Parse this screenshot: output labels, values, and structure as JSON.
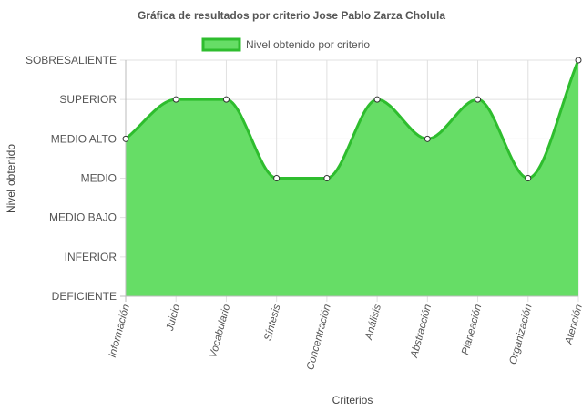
{
  "chart_data": {
    "type": "area",
    "title": "Gráfica de resultados por criterio Jose Pablo Zarza Cholula",
    "xlabel": "Criterios",
    "ylabel": "Nivel obtenido",
    "y_levels": [
      "DEFICIENTE",
      "INFERIOR",
      "MEDIO BAJO",
      "MEDIO",
      "MEDIO ALTO",
      "SUPERIOR",
      "SOBRESALIENTE"
    ],
    "ylim": [
      0,
      6
    ],
    "categories": [
      "Información",
      "Juicio",
      "Vocabulario",
      "Síntesis",
      "Concentración",
      "Análisis",
      "Abstracción",
      "Planeación",
      "Organización",
      "Atención"
    ],
    "series": [
      {
        "name": "Nivel obtenido por criterio",
        "values": [
          4,
          5,
          5,
          3,
          3,
          5,
          4,
          5,
          3,
          6
        ]
      }
    ],
    "legend_position": "top",
    "grid": true,
    "colors": {
      "fill": "#66dd66",
      "line": "#2ebd2e",
      "grid": "#e0e0e0",
      "axis": "#bbbbbb",
      "point_fill": "#ffffff",
      "point_stroke": "#333333"
    }
  }
}
